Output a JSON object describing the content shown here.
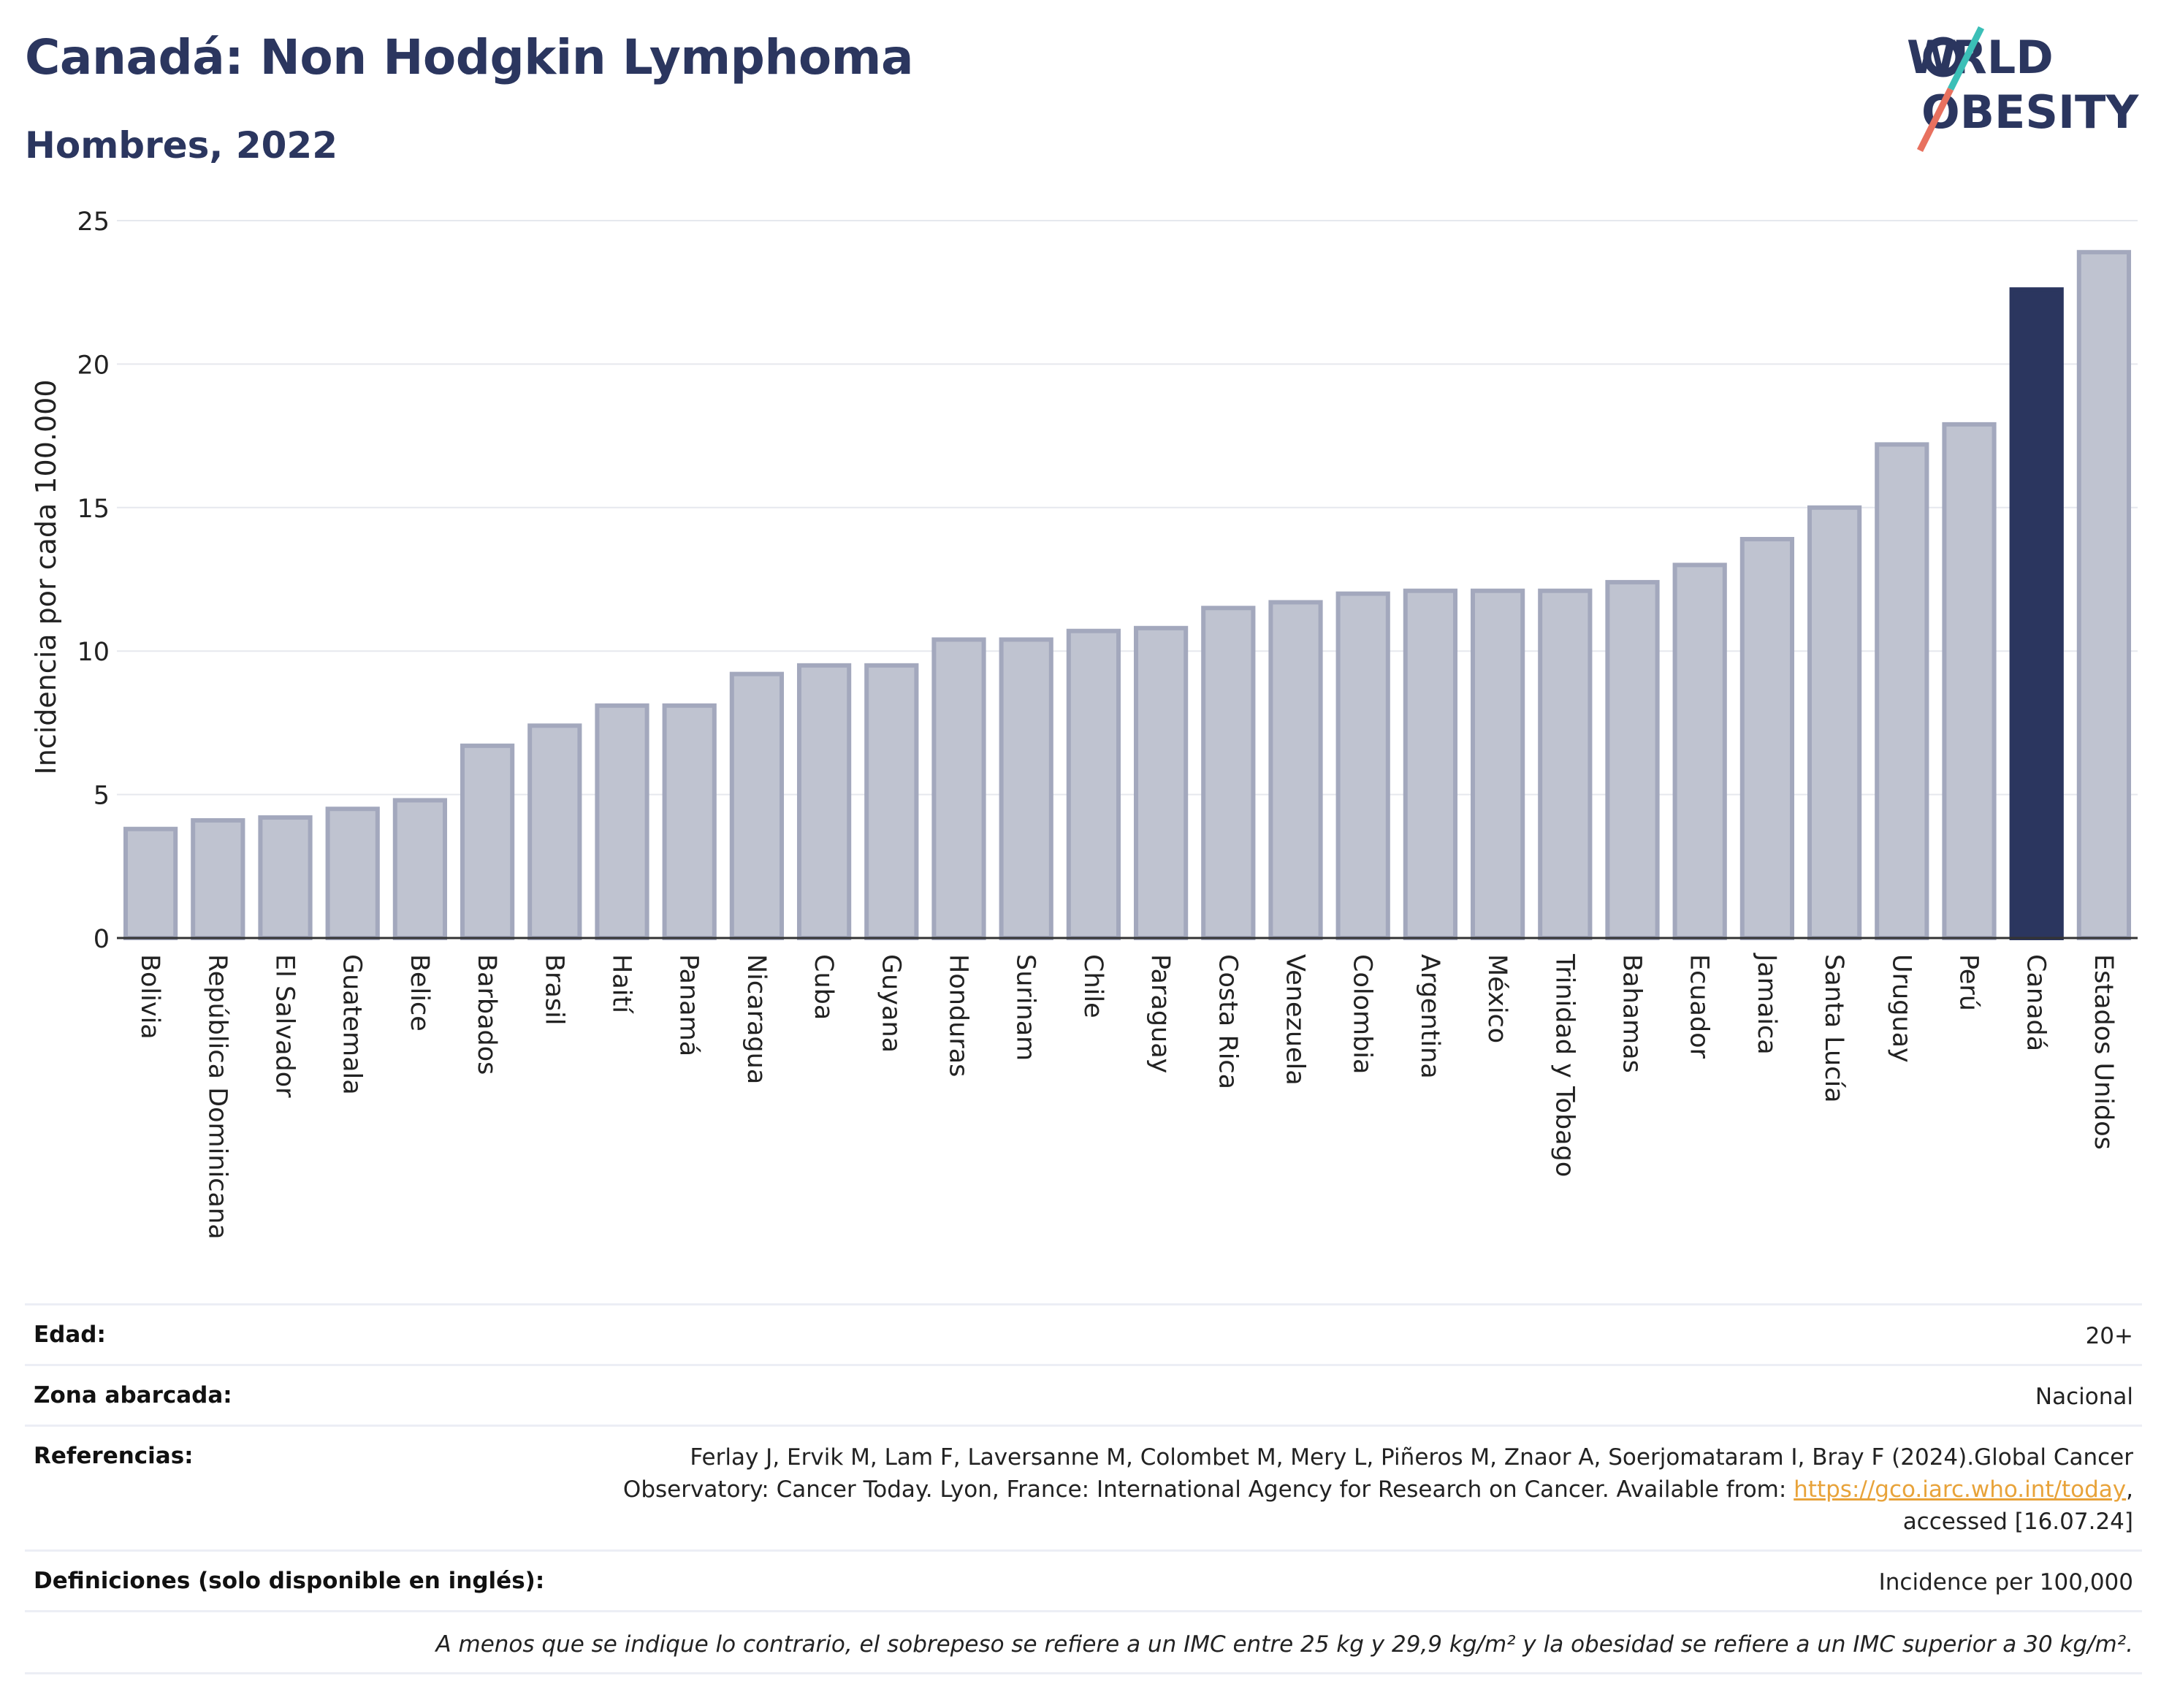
{
  "header": {
    "title": "Canadá: Non Hodgkin Lymphoma",
    "subtitle": "Hombres, 2022"
  },
  "logo": {
    "line1": "WORLD",
    "line2": "OBESITY"
  },
  "chart_data": {
    "type": "bar",
    "ylabel": "Incidencia por cada 100.000",
    "ylim": [
      0,
      25
    ],
    "yticks": [
      0,
      5,
      10,
      15,
      20,
      25
    ],
    "grid": true,
    "highlight": "Canadá",
    "colors": {
      "default": "#bfc3d0",
      "default_border": "#a3a8bd",
      "highlight": "#2b365f"
    },
    "categories": [
      "Bolivia",
      "República Dominicana",
      "El Salvador",
      "Guatemala",
      "Belice",
      "Barbados",
      "Brasil",
      "Haití",
      "Panamá",
      "Nicaragua",
      "Cuba",
      "Guyana",
      "Honduras",
      "Surinam",
      "Chile",
      "Paraguay",
      "Costa Rica",
      "Venezuela",
      "Colombia",
      "Argentina",
      "México",
      "Trinidad y Tobago",
      "Bahamas",
      "Ecuador",
      "Jamaica",
      "Santa Lucía",
      "Uruguay",
      "Perú",
      "Canadá",
      "Estados Unidos"
    ],
    "values": [
      3.8,
      4.1,
      4.2,
      4.5,
      4.8,
      6.7,
      7.4,
      8.1,
      8.1,
      9.2,
      9.5,
      9.5,
      10.4,
      10.4,
      10.7,
      10.8,
      11.5,
      11.7,
      12.0,
      12.1,
      12.1,
      12.1,
      12.4,
      13.0,
      13.9,
      15.0,
      17.2,
      17.9,
      22.6,
      23.9
    ]
  },
  "info": {
    "edad_label": "Edad:",
    "edad_value": "20+",
    "zona_label": "Zona abarcada:",
    "zona_value": "Nacional",
    "ref_label": "Referencias:",
    "ref_line1": "Ferlay J, Ervik M, Lam F, Laversanne M, Colombet M, Mery L, Piñeros M, Znaor A, Soerjomataram I, Bray F (2024).Global Cancer",
    "ref_line2_pre": "Observatory: Cancer Today. Lyon, France: International Agency for Research on Cancer. Available from: ",
    "ref_link": "https://gco.iarc.who.int/today",
    "ref_line2_post": ",",
    "ref_line3": "accessed [16.07.24]",
    "def_label": "Definiciones (solo disponible en inglés):",
    "def_value": "Incidence per 100,000",
    "note": "A menos que se indique lo contrario, el sobrepeso se refiere a un IMC entre 25 kg y 29,9 kg/m² y la obesidad se refiere a un IMC superior a 30 kg/m²."
  }
}
